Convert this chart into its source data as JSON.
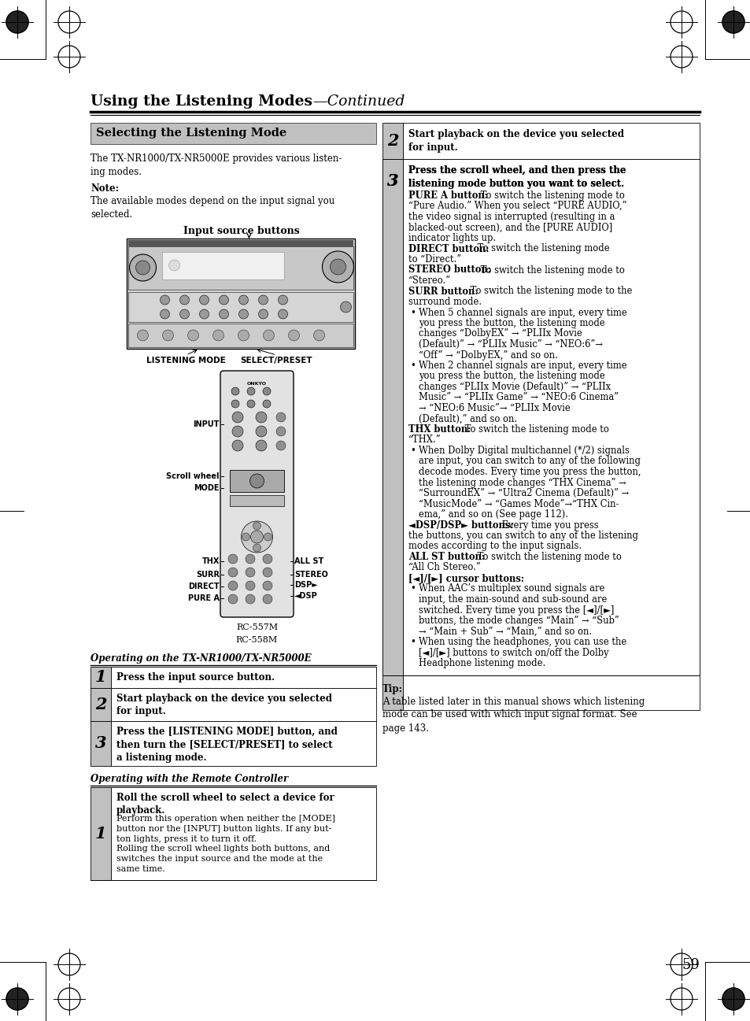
{
  "page_title_bold": "Using the Listening Modes",
  "page_title_italic": "—Continued",
  "section_header": "Selecting the Listening Mode",
  "page_number": "59",
  "bg_color": "#ffffff",
  "section_bg": "#c8c8c8",
  "step_num_bg": "#b8b8b8",
  "op_tx_header": "Operating on the TX-NR1000/TX-NR5000E",
  "op_remote_header": "Operating with the Remote Controller",
  "right_step2_bold": "Start playback on the device you selected\nfor input.",
  "right_step3_bold": "Press the scroll wheel, and then press the\nlistening mode button you want to select."
}
